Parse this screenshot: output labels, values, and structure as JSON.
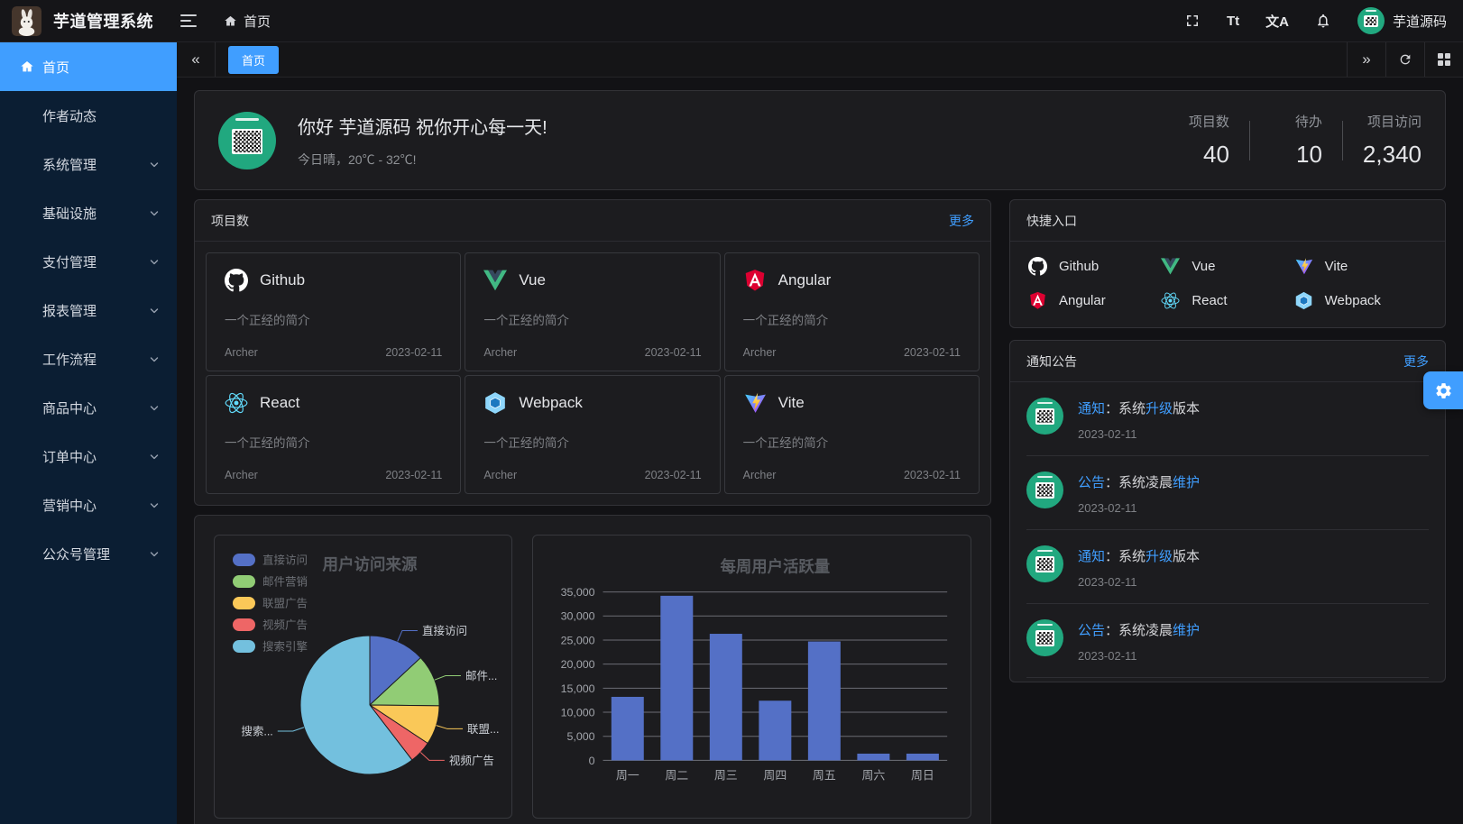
{
  "navbar": {
    "title": "芋道管理系统",
    "breadcrumb": "首页",
    "username": "芋道源码",
    "fontsize_glyph": "Tt",
    "language_glyph": "文A"
  },
  "tagbar": {
    "active_tab": "首页",
    "collapse_glyph": "«",
    "expand_glyph": "»"
  },
  "sidebar": {
    "items": [
      {
        "label": "首页",
        "active": true,
        "icon": "home-icon"
      },
      {
        "label": "作者动态"
      },
      {
        "label": "系统管理",
        "expandable": true
      },
      {
        "label": "基础设施",
        "expandable": true
      },
      {
        "label": "支付管理",
        "expandable": true
      },
      {
        "label": "报表管理",
        "expandable": true
      },
      {
        "label": "工作流程",
        "expandable": true
      },
      {
        "label": "商品中心",
        "expandable": true
      },
      {
        "label": "订单中心",
        "expandable": true
      },
      {
        "label": "营销中心",
        "expandable": true
      },
      {
        "label": "公众号管理",
        "expandable": true
      }
    ]
  },
  "greeting": {
    "title": "你好 芋道源码 祝你开心每一天!",
    "subtitle": "今日晴，20℃ - 32℃!"
  },
  "stats": [
    {
      "label": "项目数",
      "value": "40"
    },
    {
      "label": "待办",
      "value": "10"
    },
    {
      "label": "项目访问",
      "value": "2,340"
    }
  ],
  "projects": {
    "title": "项目数",
    "more_label": "更多",
    "items": [
      {
        "name": "Github",
        "icon": "github-icon",
        "desc": "一个正经的简介",
        "author": "Archer",
        "date": "2023-02-11"
      },
      {
        "name": "Vue",
        "icon": "vue-icon",
        "desc": "一个正经的简介",
        "author": "Archer",
        "date": "2023-02-11"
      },
      {
        "name": "Angular",
        "icon": "angular-icon",
        "desc": "一个正经的简介",
        "author": "Archer",
        "date": "2023-02-11"
      },
      {
        "name": "React",
        "icon": "react-icon",
        "desc": "一个正经的简介",
        "author": "Archer",
        "date": "2023-02-11"
      },
      {
        "name": "Webpack",
        "icon": "webpack-icon",
        "desc": "一个正经的简介",
        "author": "Archer",
        "date": "2023-02-11"
      },
      {
        "name": "Vite",
        "icon": "vite-icon",
        "desc": "一个正经的简介",
        "author": "Archer",
        "date": "2023-02-11"
      }
    ]
  },
  "shortcuts": {
    "title": "快捷入口",
    "items": [
      {
        "name": "Github",
        "icon": "github-icon"
      },
      {
        "name": "Vue",
        "icon": "vue-icon"
      },
      {
        "name": "Vite",
        "icon": "vite-icon"
      },
      {
        "name": "Angular",
        "icon": "angular-icon"
      },
      {
        "name": "React",
        "icon": "react-icon"
      },
      {
        "name": "Webpack",
        "icon": "webpack-icon"
      }
    ]
  },
  "notices": {
    "title": "通知公告",
    "more_label": "更多",
    "items": [
      {
        "segments": [
          {
            "text": "通知",
            "highlight": true
          },
          {
            "text": "：系统",
            "highlight": false
          },
          {
            "text": "升级",
            "highlight": true
          },
          {
            "text": "版本",
            "highlight": false
          }
        ],
        "date": "2023-02-11"
      },
      {
        "segments": [
          {
            "text": "公告",
            "highlight": true
          },
          {
            "text": "：系统凌晨",
            "highlight": false
          },
          {
            "text": "维护",
            "highlight": true
          }
        ],
        "date": "2023-02-11"
      },
      {
        "segments": [
          {
            "text": "通知",
            "highlight": true
          },
          {
            "text": "：系统",
            "highlight": false
          },
          {
            "text": "升级",
            "highlight": true
          },
          {
            "text": "版本",
            "highlight": false
          }
        ],
        "date": "2023-02-11"
      },
      {
        "segments": [
          {
            "text": "公告",
            "highlight": true
          },
          {
            "text": "：系统凌晨",
            "highlight": false
          },
          {
            "text": "维护",
            "highlight": true
          }
        ],
        "date": "2023-02-11"
      }
    ]
  },
  "colors": {
    "primary": "#409EFF",
    "sidebar_bg": "#0B1E33",
    "panel_bg": "#1C1C1F",
    "bar_blue": "#5470C6"
  },
  "chart_data": [
    {
      "type": "pie",
      "title": "用户访问来源",
      "legend_position": "top-left-vertical",
      "legend": [
        "直接访问",
        "邮件营销",
        "联盟广告",
        "视频广告",
        "搜索引擎"
      ],
      "series": [
        {
          "name": "直接访问",
          "value": 335,
          "color": "#5470C6",
          "display_label": "直接访问"
        },
        {
          "name": "邮件营销",
          "value": 310,
          "color": "#91CC75",
          "display_label": "邮件..."
        },
        {
          "name": "联盟广告",
          "value": 234,
          "color": "#FAC858",
          "display_label": "联盟..."
        },
        {
          "name": "视频广告",
          "value": 135,
          "color": "#EE6666",
          "display_label": "视频广告"
        },
        {
          "name": "搜索引擎",
          "value": 1548,
          "color": "#73C0DE",
          "display_label": "搜索..."
        }
      ]
    },
    {
      "type": "bar",
      "title": "每周用户活跃量",
      "categories": [
        "周一",
        "周二",
        "周三",
        "周四",
        "周五",
        "周六",
        "周日"
      ],
      "values": [
        13200,
        34200,
        26300,
        12400,
        24700,
        1400,
        1400
      ],
      "xlabel": "",
      "ylabel": "",
      "ylim": [
        0,
        35000
      ],
      "ytick_step": 5000,
      "bar_color": "#5470C6",
      "grid": true,
      "legend_position": "none"
    }
  ]
}
